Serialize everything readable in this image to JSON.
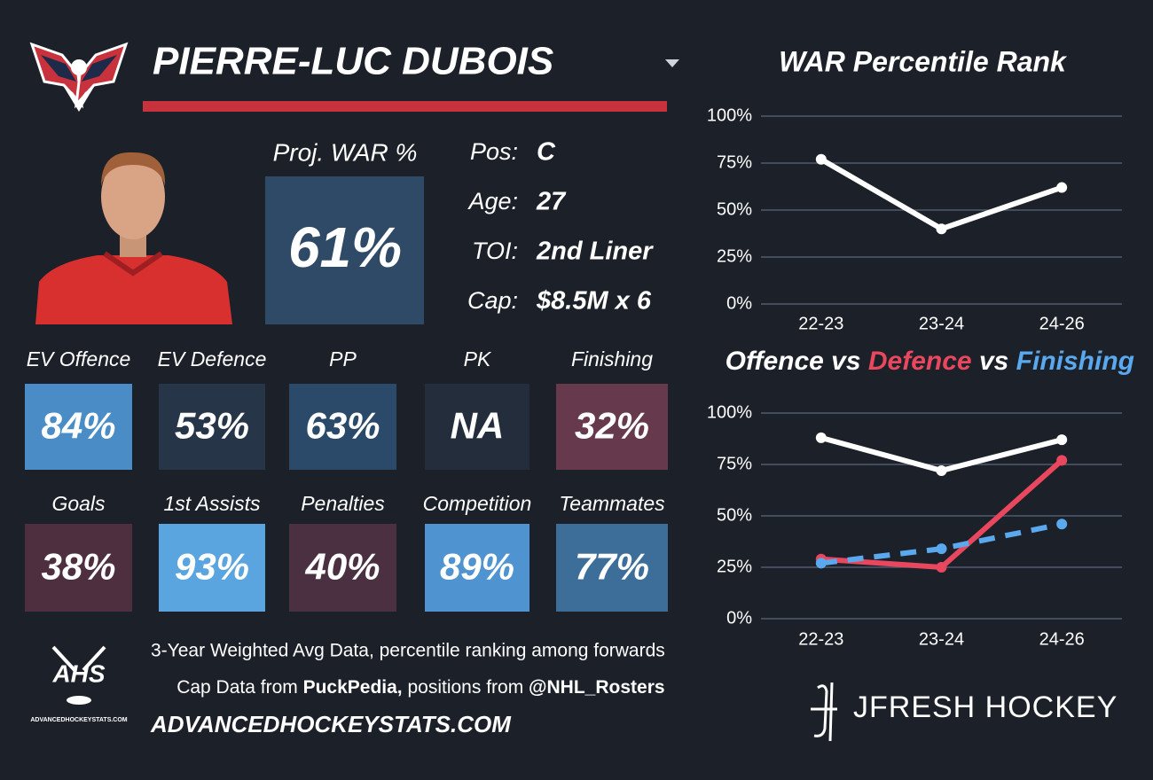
{
  "header": {
    "name": "PIERRE-LUC DUBOIS"
  },
  "projection": {
    "label": "Proj. WAR %",
    "value": "61%",
    "color": "#2e4a66"
  },
  "info": [
    {
      "label": "Pos:",
      "value": "C"
    },
    {
      "label": "Age:",
      "value": "27"
    },
    {
      "label": "TOI:",
      "value": "2nd Liner"
    },
    {
      "label": "Cap:",
      "value": "$8.5M x 6"
    }
  ],
  "tiles": [
    {
      "label": "EV Offence",
      "value": "84%",
      "color": "#4a8cc6"
    },
    {
      "label": "EV Defence",
      "value": "53%",
      "color": "#263548"
    },
    {
      "label": "PP",
      "value": "63%",
      "color": "#2b4a6a"
    },
    {
      "label": "PK",
      "value": "NA",
      "color": "#232d3c"
    },
    {
      "label": "Finishing",
      "value": "32%",
      "color": "#663a4c"
    },
    {
      "label": "Goals",
      "value": "38%",
      "color": "#4e2f40"
    },
    {
      "label": "1st Assists",
      "value": "93%",
      "color": "#5aa5e0"
    },
    {
      "label": "Penalties",
      "value": "40%",
      "color": "#4b3041"
    },
    {
      "label": "Competition",
      "value": "89%",
      "color": "#4f93d0"
    },
    {
      "label": "Teammates",
      "value": "77%",
      "color": "#3d6e9a"
    }
  ],
  "footer": {
    "line1": "3-Year Weighted Avg Data, percentile ranking among forwards",
    "line2": [
      "Cap Data from ",
      "PuckPedia,",
      " positions from ",
      "@NHL_Rosters"
    ],
    "site": "ADVANCEDHOCKEYSTATS.COM",
    "logo_text": "AHS",
    "logo_caption": "ADVANCEDHOCKEYSTATS.COM",
    "brand": "JFRESH HOCKEY"
  },
  "chart_data": [
    {
      "type": "line",
      "title": "WAR Percentile Rank",
      "categories": [
        "22-23",
        "23-24",
        "24-26"
      ],
      "values": [
        77,
        40,
        62
      ],
      "color": "#ffffff",
      "ylim": [
        0,
        100
      ],
      "yticks": [
        {
          "value": 0,
          "label": "0%"
        },
        {
          "value": 25,
          "label": "25%"
        },
        {
          "value": 50,
          "label": "50%"
        },
        {
          "value": 75,
          "label": "75%"
        },
        {
          "value": 100,
          "label": "100%"
        }
      ],
      "grid": true
    },
    {
      "type": "line",
      "title_separator": "vs",
      "categories": [
        "22-23",
        "23-24",
        "24-26"
      ],
      "series": [
        {
          "name": "Offence",
          "color": "#ffffff",
          "values": [
            88,
            72,
            87
          ]
        },
        {
          "name": "Defence",
          "color": "#e8475e",
          "values": [
            29,
            25,
            77
          ]
        },
        {
          "name": "Finishing",
          "color": "#5aa9ef",
          "values": [
            27,
            34,
            46
          ],
          "dashed": true
        }
      ],
      "ylim": [
        0,
        100
      ],
      "yticks": [
        {
          "value": 0,
          "label": "0%"
        },
        {
          "value": 25,
          "label": "25%"
        },
        {
          "value": 50,
          "label": "50%"
        },
        {
          "value": 75,
          "label": "75%"
        },
        {
          "value": 100,
          "label": "100%"
        }
      ],
      "grid": true
    }
  ]
}
